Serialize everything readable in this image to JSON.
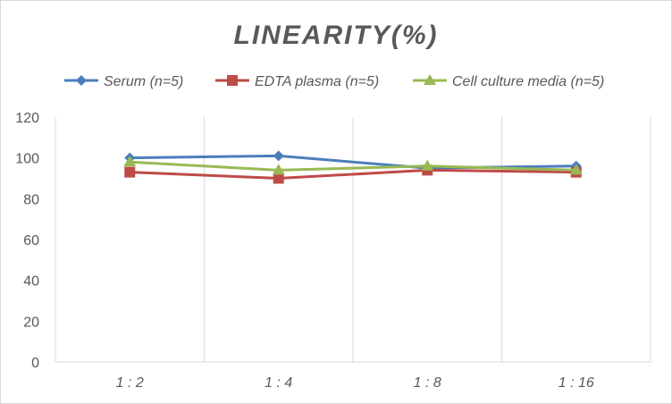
{
  "chart_data": {
    "type": "line",
    "title": "LINEARITY(%)",
    "categories": [
      "1:2",
      "1:4",
      "1:8",
      "1:16"
    ],
    "ylim": [
      0,
      120
    ],
    "yticks": [
      0,
      20,
      40,
      60,
      80,
      100,
      120
    ],
    "grid": "vertical",
    "legend_position": "top",
    "series": [
      {
        "name": "Serum (n=5)",
        "values": [
          100,
          101,
          95,
          96
        ],
        "color": "#4a7ebb",
        "marker": "diamond"
      },
      {
        "name": "EDTA plasma (n=5)",
        "values": [
          93,
          90,
          94,
          93
        ],
        "color": "#be4b48",
        "marker": "square"
      },
      {
        "name": "Cell culture media (n=5)",
        "values": [
          98,
          94,
          96,
          94
        ],
        "color": "#98b954",
        "marker": "triangle"
      }
    ]
  }
}
